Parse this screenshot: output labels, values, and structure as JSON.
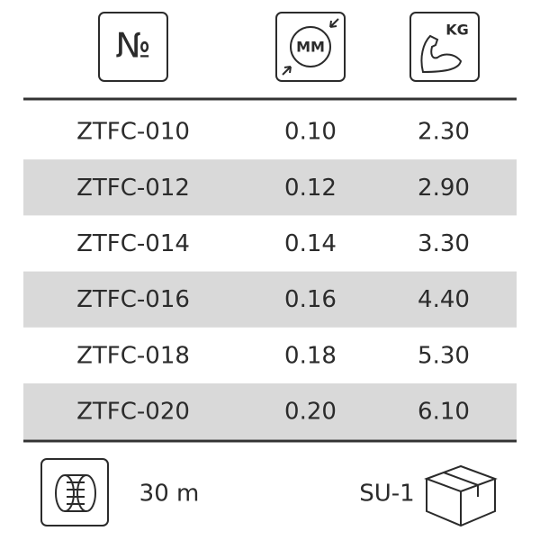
{
  "header": {
    "number_icon": "№",
    "diameter_icon": "MM",
    "strength_icon": "KG"
  },
  "table": {
    "rows": [
      [
        "ZTFC-010",
        "0.10",
        "2.30"
      ],
      [
        "ZTFC-012",
        "0.12",
        "2.90"
      ],
      [
        "ZTFC-014",
        "0.14",
        "3.30"
      ],
      [
        "ZTFC-016",
        "0.16",
        "4.40"
      ],
      [
        "ZTFC-018",
        "0.18",
        "5.30"
      ],
      [
        "ZTFC-020",
        "0.20",
        "6.10"
      ]
    ]
  },
  "footer": {
    "length": "30 m",
    "package": "SU-1"
  }
}
